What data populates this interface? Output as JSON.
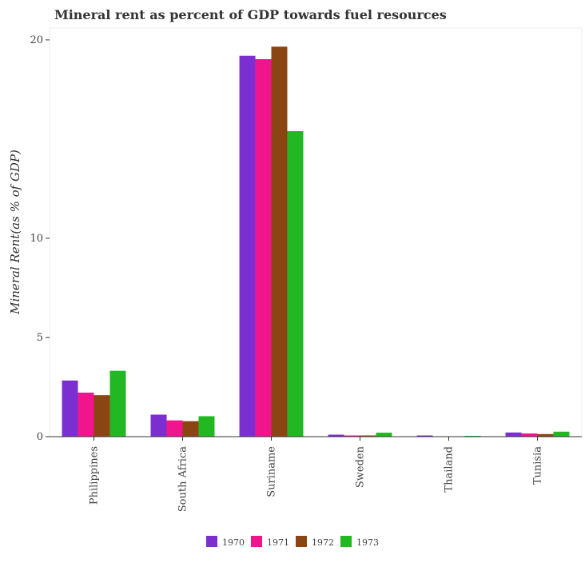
{
  "chart_data": {
    "type": "bar",
    "title": "Mineral rent as percent of GDP towards fuel resources",
    "ylabel": "Mineral Rent(as % of GDP)",
    "xlabel": "",
    "categories": [
      "Philippines",
      "South Africa",
      "Suriname",
      "Sweden",
      "Thailand",
      "Tunisia"
    ],
    "series": [
      {
        "name": "1970",
        "color": "#7b2fd0",
        "values": [
          2.83,
          1.11,
          19.2,
          0.1,
          0.06,
          0.21
        ]
      },
      {
        "name": "1971",
        "color": "#f0158c",
        "values": [
          2.22,
          0.82,
          19.03,
          0.06,
          0.01,
          0.16
        ]
      },
      {
        "name": "1972",
        "color": "#8b4513",
        "values": [
          2.09,
          0.78,
          19.66,
          0.06,
          0.01,
          0.13
        ]
      },
      {
        "name": "1973",
        "color": "#22b822",
        "values": [
          3.32,
          1.03,
          15.4,
          0.2,
          0.04,
          0.25
        ]
      }
    ],
    "ylim": [
      0,
      20.6
    ],
    "yticks": [
      0,
      5,
      10,
      20
    ],
    "grid": false,
    "legend_position": "bottom-center"
  }
}
